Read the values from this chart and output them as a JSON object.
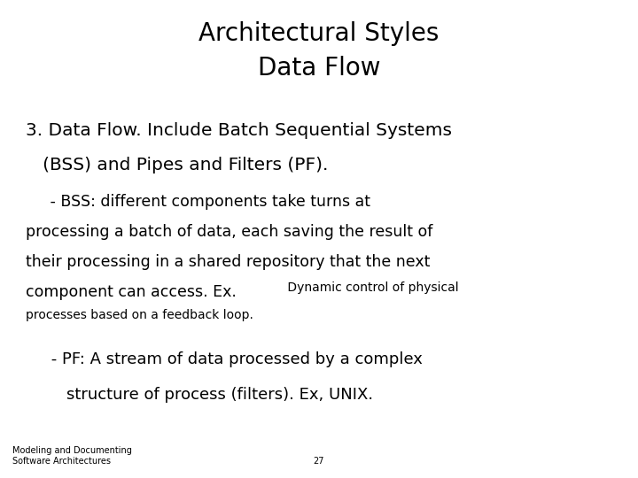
{
  "title": "Architectural Styles\nData Flow",
  "title_fontsize": 20,
  "bg_color": "#ffffff",
  "text_color": "#000000",
  "heading_line1": "3. Data Flow. Include Batch Sequential Systems",
  "heading_line2": "   (BSS) and Pipes and Filters (PF).",
  "heading_fontsize": 14.5,
  "bss_indent": "     - BSS: different components take turns at",
  "bss_line2": "processing a batch of data, each saving the result of",
  "bss_line3": "their processing in a shared repository that the next",
  "bss_line4_large": "component can access. Ex.",
  "bss_line4_small": " Dynamic control of physical",
  "bss_line5": "processes based on a feedback loop.",
  "bss_large_fontsize": 12.5,
  "bss_small_fontsize": 10,
  "pf_line1": "     - PF: A stream of data processed by a complex",
  "pf_line2": "        structure of process (filters). Ex, UNIX.",
  "pf_fontsize": 13,
  "footer_left": "Modeling and Documenting\nSoftware Architectures",
  "footer_center": "27",
  "footer_fontsize": 7
}
